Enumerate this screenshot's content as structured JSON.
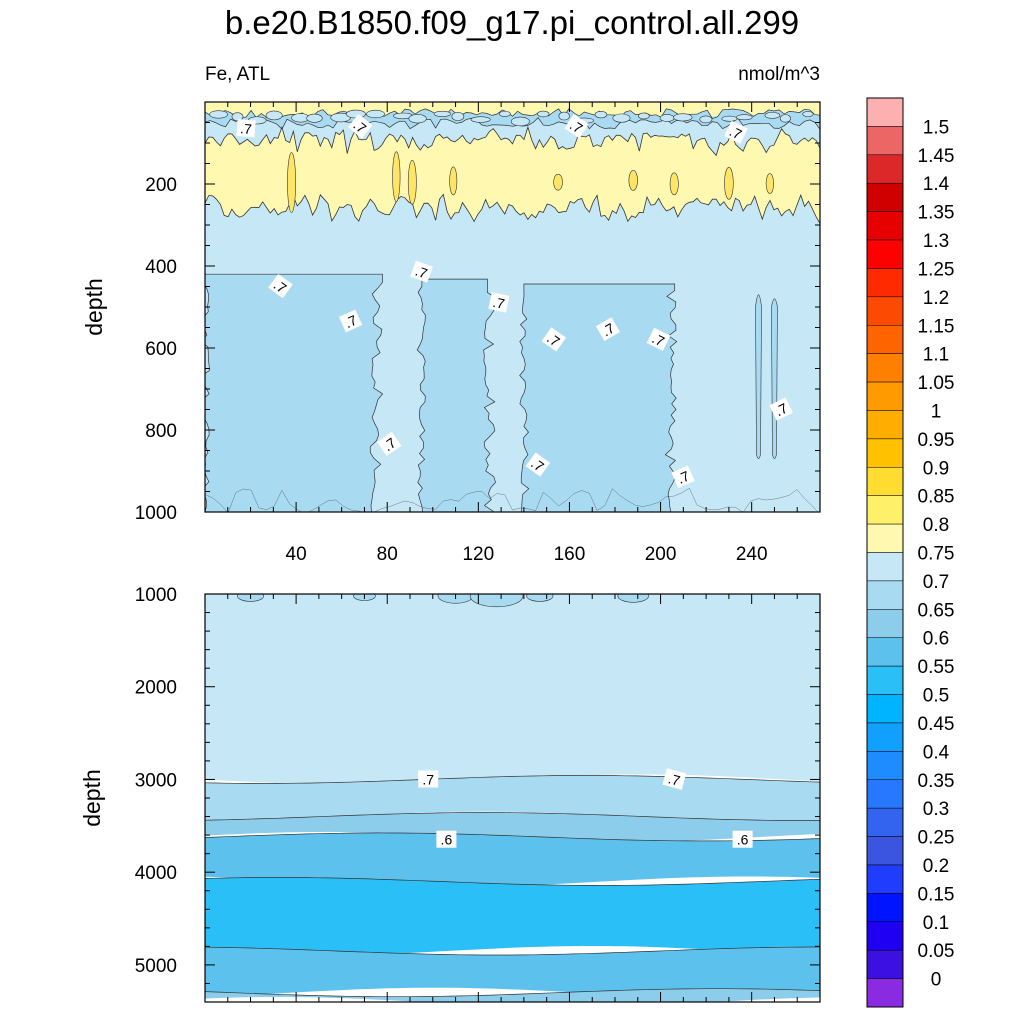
{
  "title": "b.e20.B1850.f09_g17.pi_control.all.299",
  "left_subtitle": "Fe, ATL",
  "right_subtitle": "nmol/m^3",
  "chart_data": [
    {
      "type": "contour",
      "panel": "upper",
      "xlabel": "",
      "ylabel": "depth",
      "xlim": [
        0,
        270
      ],
      "ylim": [
        1000,
        0
      ],
      "xticks": [
        40,
        80,
        120,
        160,
        200,
        240
      ],
      "yticks": [
        200,
        400,
        600,
        800,
        1000
      ],
      "bands": [
        {
          "level_range": [
            0.75,
            0.8
          ],
          "color": "#fff8b0",
          "depth_range": [
            0,
            20
          ]
        },
        {
          "level_range": [
            0.7,
            0.75
          ],
          "color": "#c5e7f6",
          "depth_range": [
            20,
            60
          ]
        },
        {
          "level_range": [
            0.65,
            0.7
          ],
          "color": "#a8daf1",
          "depth_range": [
            25,
            55
          ]
        },
        {
          "level_range": [
            0.75,
            0.8
          ],
          "color": "#fff8b0",
          "depth_range": [
            90,
            260
          ]
        },
        {
          "level_range": [
            0.7,
            0.75
          ],
          "color": "#c5e7f6",
          "depth_range": [
            260,
            1000
          ]
        },
        {
          "level_range": [
            0.65,
            0.7
          ],
          "color": "#a8daf1",
          "depth_range": [
            420,
            1000
          ]
        }
      ],
      "contour_labels": [
        {
          "text": ".7",
          "x": 15,
          "depth": 65
        },
        {
          "text": ".7",
          "x": 65,
          "depth": 60
        },
        {
          "text": ".7",
          "x": 160,
          "depth": 60
        },
        {
          "text": ".7",
          "x": 230,
          "depth": 75
        },
        {
          "text": ".7",
          "x": 30,
          "depth": 450
        },
        {
          "text": ".7",
          "x": 92,
          "depth": 415
        },
        {
          "text": ".7",
          "x": 126,
          "depth": 490
        },
        {
          "text": ".7",
          "x": 61,
          "depth": 535
        },
        {
          "text": ".7",
          "x": 150,
          "depth": 580
        },
        {
          "text": ".7",
          "x": 174,
          "depth": 555
        },
        {
          "text": ".7",
          "x": 196,
          "depth": 580
        },
        {
          "text": ".7",
          "x": 250,
          "depth": 750
        },
        {
          "text": ".7",
          "x": 78,
          "depth": 835
        },
        {
          "text": ".7",
          "x": 143,
          "depth": 885
        },
        {
          "text": ".7",
          "x": 207,
          "depth": 915
        }
      ]
    },
    {
      "type": "contour",
      "panel": "lower",
      "xlabel": "",
      "ylabel": "depth",
      "xlim": [
        0,
        270
      ],
      "ylim": [
        5400,
        1000
      ],
      "yticks": [
        1000,
        2000,
        3000,
        4000,
        5000
      ],
      "bands": [
        {
          "level_range": [
            0.7,
            0.75
          ],
          "color": "#c5e7f6",
          "depth_range": [
            1000,
            3000
          ]
        },
        {
          "level_range": [
            0.65,
            0.7
          ],
          "color": "#a8daf1",
          "depth_range": [
            3000,
            3400
          ]
        },
        {
          "level_range": [
            0.6,
            0.65
          ],
          "color": "#8dcdec",
          "depth_range": [
            3400,
            3620
          ]
        },
        {
          "level_range": [
            0.55,
            0.6
          ],
          "color": "#5dc1ee",
          "depth_range": [
            3620,
            4100
          ]
        },
        {
          "level_range": [
            0.5,
            0.55
          ],
          "color": "#2bbff7",
          "depth_range": [
            4100,
            4850
          ]
        },
        {
          "level_range": [
            0.55,
            0.6
          ],
          "color": "#5dc1ee",
          "depth_range": [
            4850,
            5300
          ]
        },
        {
          "level_range": [
            0.6,
            0.65
          ],
          "color": "#8dcdec",
          "depth_range": [
            5300,
            5400
          ]
        }
      ],
      "contour_labels": [
        {
          "text": ".7",
          "x": 95,
          "depth": 3000
        },
        {
          "text": ".7",
          "x": 203,
          "depth": 3000
        },
        {
          "text": ".6",
          "x": 103,
          "depth": 3650
        },
        {
          "text": ".6",
          "x": 233,
          "depth": 3650
        }
      ]
    }
  ],
  "colorbar": {
    "labels": [
      "1.5",
      "1.45",
      "1.4",
      "1.35",
      "1.3",
      "1.25",
      "1.2",
      "1.15",
      "1.1",
      "1.05",
      "1",
      "0.95",
      "0.9",
      "0.85",
      "0.8",
      "0.75",
      "0.7",
      "0.65",
      "0.6",
      "0.55",
      "0.5",
      "0.45",
      "0.4",
      "0.35",
      "0.3",
      "0.25",
      "0.2",
      "0.15",
      "0.1",
      "0.05",
      "0"
    ],
    "colors": [
      "#fdb0b0",
      "#ec6666",
      "#dc2828",
      "#d10000",
      "#e60000",
      "#ff0000",
      "#ff2a00",
      "#fc4a00",
      "#fe6500",
      "#ff7f00",
      "#ff9a00",
      "#ffae00",
      "#ffc100",
      "#ffdd30",
      "#fff06a",
      "#fff8b0",
      "#c5e7f6",
      "#a8daf1",
      "#8dcdec",
      "#5dc1ee",
      "#2bbff7",
      "#00b4ff",
      "#12a0ff",
      "#1e8cff",
      "#2878ff",
      "#3264f0",
      "#3c55e0",
      "#1f3cff",
      "#0014ff",
      "#2000f0",
      "#3c10e0",
      "#8a2be2"
    ]
  }
}
